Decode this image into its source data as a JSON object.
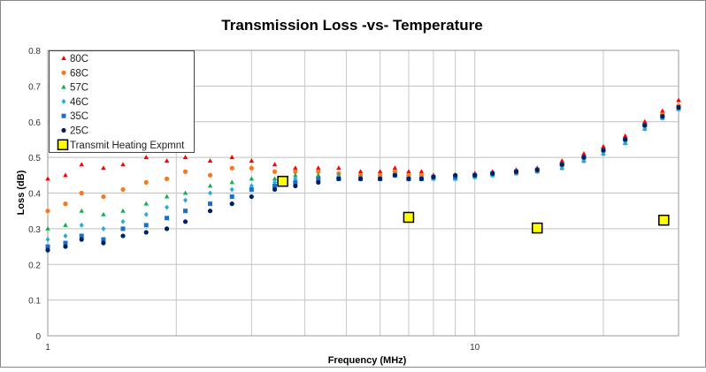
{
  "chart_data": {
    "type": "scatter",
    "title": "Transmission Loss -vs- Temperature",
    "xlabel": "Frequency (MHz)",
    "ylabel": "Loss (dB)",
    "xscale": "log",
    "xlim": [
      1,
      30
    ],
    "ylim": [
      0,
      0.8
    ],
    "x_ticks": [
      "1",
      "10"
    ],
    "y_ticks": [
      "0",
      "0.1",
      "0.2",
      "0.3",
      "0.4",
      "0.5",
      "0.6",
      "0.7",
      "0.8"
    ],
    "grid": true,
    "legend": "top-left",
    "x": [
      1,
      1.1,
      1.2,
      1.35,
      1.5,
      1.7,
      1.9,
      2.1,
      2.4,
      2.7,
      3,
      3.4,
      3.8,
      4.3,
      4.8,
      5.4,
      6,
      6.5,
      7,
      7.5,
      8,
      9,
      10,
      11,
      12.5,
      14,
      16,
      18,
      20,
      22.5,
      25,
      27.5,
      30
    ],
    "series": [
      {
        "name": "80C",
        "color": "#ff0000",
        "marker": "triangle",
        "values": [
          0.44,
          0.45,
          0.48,
          0.47,
          0.48,
          0.5,
          0.49,
          0.5,
          0.49,
          0.5,
          0.49,
          0.48,
          0.47,
          0.47,
          0.47,
          0.46,
          0.46,
          0.47,
          0.46,
          0.46,
          0.45,
          0.45,
          0.455,
          0.46,
          0.465,
          0.47,
          0.49,
          0.51,
          0.53,
          0.56,
          0.6,
          0.63,
          0.66
        ]
      },
      {
        "name": "68C",
        "color": "#f47920",
        "marker": "circle",
        "values": [
          0.35,
          0.37,
          0.4,
          0.39,
          0.41,
          0.43,
          0.44,
          0.46,
          0.45,
          0.47,
          0.47,
          0.46,
          0.46,
          0.46,
          0.455,
          0.45,
          0.45,
          0.46,
          0.45,
          0.45,
          0.445,
          0.445,
          0.45,
          0.455,
          0.46,
          0.465,
          0.48,
          0.5,
          0.52,
          0.55,
          0.59,
          0.62,
          0.645
        ]
      },
      {
        "name": "57C",
        "color": "#1aaf54",
        "marker": "triangle",
        "values": [
          0.3,
          0.31,
          0.35,
          0.34,
          0.35,
          0.37,
          0.39,
          0.4,
          0.42,
          0.43,
          0.44,
          0.44,
          0.45,
          0.45,
          0.45,
          0.445,
          0.44,
          0.45,
          0.44,
          0.44,
          0.44,
          0.44,
          0.445,
          0.45,
          0.455,
          0.46,
          0.47,
          0.49,
          0.51,
          0.54,
          0.58,
          0.61,
          0.635
        ]
      },
      {
        "name": "46C",
        "color": "#29abe2",
        "marker": "diamond",
        "values": [
          0.27,
          0.28,
          0.31,
          0.3,
          0.32,
          0.34,
          0.36,
          0.38,
          0.4,
          0.41,
          0.42,
          0.43,
          0.44,
          0.44,
          0.445,
          0.44,
          0.44,
          0.45,
          0.44,
          0.44,
          0.44,
          0.44,
          0.445,
          0.45,
          0.455,
          0.46,
          0.47,
          0.49,
          0.51,
          0.54,
          0.58,
          0.61,
          0.635
        ]
      },
      {
        "name": "35C",
        "color": "#1f6fc5",
        "marker": "square",
        "values": [
          0.25,
          0.26,
          0.28,
          0.27,
          0.3,
          0.31,
          0.33,
          0.35,
          0.37,
          0.39,
          0.41,
          0.42,
          0.43,
          0.44,
          0.44,
          0.44,
          0.44,
          0.45,
          0.44,
          0.44,
          0.445,
          0.445,
          0.45,
          0.455,
          0.46,
          0.465,
          0.48,
          0.5,
          0.52,
          0.55,
          0.59,
          0.615,
          0.64
        ]
      },
      {
        "name": "25C",
        "color": "#002060",
        "marker": "circle",
        "values": [
          0.24,
          0.25,
          0.27,
          0.26,
          0.28,
          0.29,
          0.3,
          0.32,
          0.35,
          0.37,
          0.39,
          0.41,
          0.42,
          0.43,
          0.44,
          0.44,
          0.44,
          0.45,
          0.44,
          0.44,
          0.445,
          0.45,
          0.45,
          0.455,
          0.46,
          0.465,
          0.48,
          0.5,
          0.52,
          0.55,
          0.59,
          0.615,
          0.64
        ]
      },
      {
        "name": "Transmit Heating Expmnt",
        "color": "#ffff00",
        "marker": "big-square",
        "points": [
          [
            3.55,
            0.433
          ],
          [
            7.0,
            0.332
          ],
          [
            14.0,
            0.302
          ],
          [
            27.7,
            0.324
          ]
        ]
      }
    ]
  }
}
